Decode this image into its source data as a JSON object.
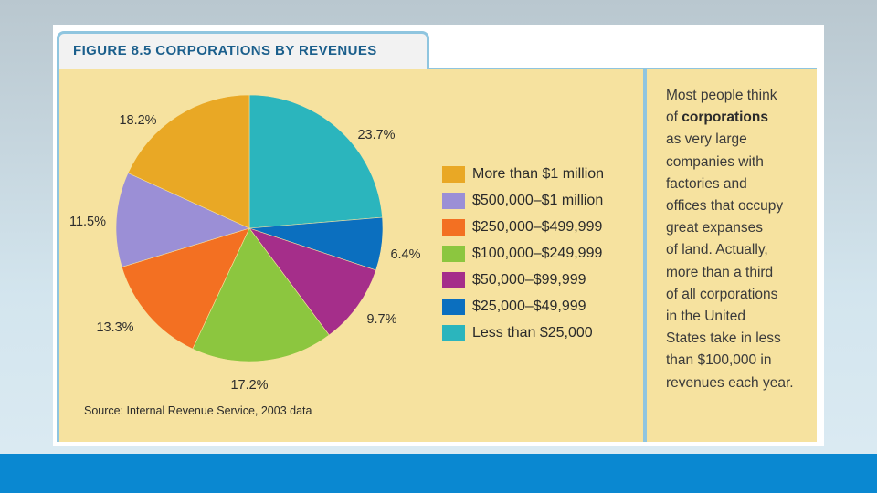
{
  "figure": {
    "title": "FIGURE 8.5 CORPORATIONS BY REVENUES",
    "source": "Source: Internal Revenue Service, 2003 data"
  },
  "side_text": {
    "lines": [
      {
        "pre": "Most people think",
        "bold": ""
      },
      {
        "pre": "of ",
        "bold": "corporations"
      },
      {
        "pre": "as very large",
        "bold": ""
      },
      {
        "pre": "companies with",
        "bold": ""
      },
      {
        "pre": "factories and",
        "bold": ""
      },
      {
        "pre": "offices that occupy",
        "bold": ""
      },
      {
        "pre": "great expanses",
        "bold": ""
      },
      {
        "pre": "of land. Actually,",
        "bold": ""
      },
      {
        "pre": "more than a third",
        "bold": ""
      },
      {
        "pre": "of all corporations",
        "bold": ""
      },
      {
        "pre": "in the United",
        "bold": ""
      },
      {
        "pre": "States take in less",
        "bold": ""
      },
      {
        "pre": "than $100,000 in",
        "bold": ""
      },
      {
        "pre": "revenues each year.",
        "bold": ""
      }
    ]
  },
  "chart_data": {
    "type": "pie",
    "title": "CORPORATIONS BY REVENUES",
    "start": "12 o'clock, clockwise",
    "slices": [
      {
        "label": "Less than $25,000",
        "value": 23.7,
        "value_label": "23.7%",
        "color": "#2bb5bd"
      },
      {
        "label": "$25,000–$49,999",
        "value": 6.4,
        "value_label": "6.4%",
        "color": "#0b6fbf"
      },
      {
        "label": "$50,000–$99,999",
        "value": 9.7,
        "value_label": "9.7%",
        "color": "#a52e8a"
      },
      {
        "label": "$100,000–$249,999",
        "value": 17.2,
        "value_label": "17.2%",
        "color": "#8cc63f"
      },
      {
        "label": "$250,000–$499,999",
        "value": 13.3,
        "value_label": "13.3%",
        "color": "#f37022"
      },
      {
        "label": "$500,000–$1 million",
        "value": 11.5,
        "value_label": "11.5%",
        "color": "#9b8fd6"
      },
      {
        "label": "More than $1 million",
        "value": 18.2,
        "value_label": "18.2%",
        "color": "#e9a825"
      }
    ],
    "legend_order": [
      "More than $1 million",
      "$500,000–$1 million",
      "$250,000–$499,999",
      "$100,000–$249,999",
      "$50,000–$99,999",
      "$25,000–$49,999",
      "Less than $25,000"
    ],
    "legend_placement": "right"
  }
}
